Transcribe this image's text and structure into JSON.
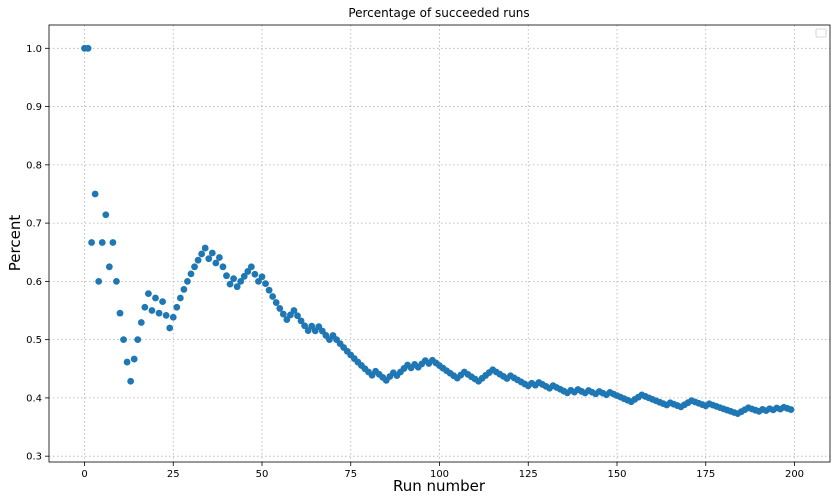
{
  "chart_data": {
    "type": "scatter",
    "title": "Percentage of succeeded runs",
    "xlabel": "Run number",
    "ylabel": "Percent",
    "xlim": [
      -10,
      210
    ],
    "ylim": [
      0.29,
      1.04
    ],
    "xticks": [
      0,
      25,
      50,
      75,
      100,
      125,
      150,
      175,
      200
    ],
    "yticks": [
      0.3,
      0.4,
      0.5,
      0.6,
      0.7,
      0.8,
      0.9,
      1.0
    ],
    "ytick_labels": [
      "0.3",
      "0.4",
      "0.5",
      "0.6",
      "0.7",
      "0.8",
      "0.9",
      "1.0"
    ],
    "grid": true,
    "legend": "top-right",
    "marker_color": "#1f77b4",
    "series": [
      {
        "runs": 200,
        "successes": [
          1,
          1,
          0,
          1,
          0,
          1,
          1,
          0,
          1,
          0,
          0,
          0,
          0,
          0,
          1,
          1,
          1,
          1,
          1,
          0,
          1,
          0,
          1,
          0,
          0,
          1,
          1,
          1,
          1,
          1,
          1,
          1,
          1,
          1,
          1,
          0,
          1,
          0,
          1,
          0,
          0,
          0,
          1,
          0,
          1,
          1,
          1,
          1,
          0,
          0,
          1,
          0,
          0,
          0,
          0,
          0,
          0,
          0,
          1,
          1,
          0,
          0,
          0,
          0,
          1,
          0,
          1,
          0,
          0,
          0,
          1,
          0,
          0,
          0,
          0,
          0,
          0,
          0,
          0,
          0,
          0,
          0,
          1,
          0,
          0,
          0,
          1,
          1,
          0,
          1,
          1,
          1,
          0,
          1,
          0,
          1,
          1,
          0,
          1,
          0,
          0,
          0,
          0,
          0,
          0,
          0,
          1,
          1,
          0,
          0,
          0,
          0,
          1,
          1,
          1,
          1,
          0,
          0,
          0,
          0,
          1,
          0,
          0,
          0,
          0,
          0,
          1,
          0,
          1,
          0,
          0,
          0,
          1,
          0,
          0,
          0,
          0,
          1,
          0,
          1,
          0,
          0,
          1,
          0,
          0,
          1,
          0,
          0,
          1,
          0,
          0,
          0,
          0,
          0,
          0,
          1,
          1,
          1,
          0,
          0,
          0,
          0,
          0,
          0,
          0,
          1,
          0,
          0,
          0,
          1,
          1,
          1,
          0,
          0,
          0,
          0,
          1,
          0,
          0,
          0,
          0,
          0,
          0,
          0,
          0,
          1,
          1,
          1,
          0,
          0,
          0,
          1,
          0,
          1,
          0,
          1,
          0,
          1,
          0,
          0
        ]
      }
    ]
  }
}
